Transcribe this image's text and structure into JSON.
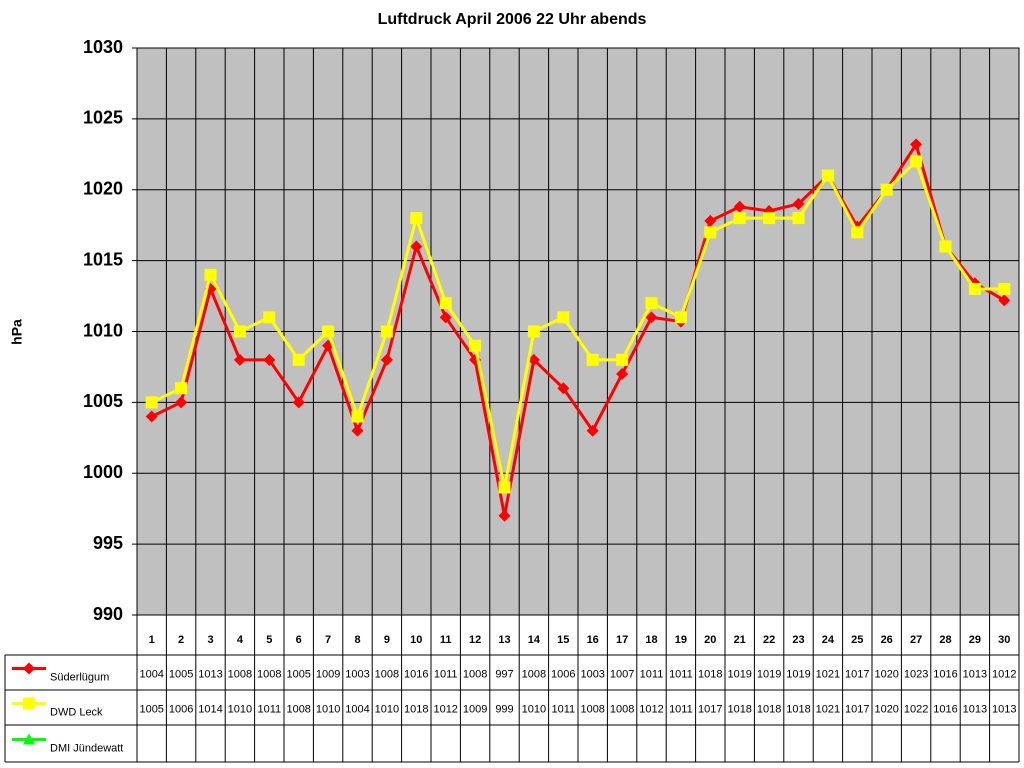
{
  "chart_data": {
    "type": "line",
    "title": "Luftdruck April 2006 22 Uhr abends",
    "y_label": "hPa",
    "categories": [
      "1",
      "2",
      "3",
      "4",
      "5",
      "6",
      "7",
      "8",
      "9",
      "10",
      "11",
      "12",
      "13",
      "14",
      "15",
      "16",
      "17",
      "18",
      "19",
      "20",
      "21",
      "22",
      "23",
      "24",
      "25",
      "26",
      "27",
      "28",
      "29",
      "30"
    ],
    "series": [
      {
        "name": "Süderlügum",
        "color": "#ff0000",
        "marker": "diamond",
        "values": [
          1004,
          1005,
          1013,
          1008,
          1008,
          1005,
          1009,
          1003,
          1008,
          1016,
          1011,
          1008,
          997,
          1008,
          1006,
          1003,
          1007,
          1011,
          1010.7,
          1017.8,
          1018.8,
          1018.5,
          1019,
          1021,
          1017.4,
          1020,
          1023.2,
          1016,
          1013.4,
          1012.2
        ],
        "value_labels": [
          "1004",
          "1005",
          "1013",
          "1008",
          "1008",
          "1005",
          "1009",
          "1003",
          "1008",
          "1016",
          "1011",
          "1008",
          "997",
          "1008",
          "1006",
          "1003",
          "1007",
          "1011",
          "1011",
          "1018",
          "1019",
          "1019",
          "1019",
          "1021",
          "1017",
          "1020",
          "1023",
          "1016",
          "1013",
          "1012"
        ]
      },
      {
        "name": "DWD Leck",
        "color": "#ffff00",
        "marker": "square",
        "values": [
          1005,
          1006,
          1014,
          1010,
          1011,
          1008,
          1010,
          1004,
          1010,
          1018,
          1012,
          1009,
          999,
          1010,
          1011,
          1008,
          1008,
          1012,
          1011,
          1017,
          1018,
          1018,
          1018,
          1021,
          1017,
          1020,
          1022,
          1016,
          1013,
          1013
        ]
      },
      {
        "name": "DMI Jündewatt",
        "color": "#00ff00",
        "marker": "triangle",
        "values": [
          null,
          null,
          null,
          null,
          null,
          null,
          null,
          null,
          null,
          null,
          null,
          null,
          null,
          null,
          null,
          null,
          null,
          null,
          null,
          null,
          null,
          null,
          null,
          null,
          null,
          null,
          null,
          null,
          null,
          null
        ]
      }
    ],
    "ylim": [
      990,
      1030
    ],
    "yticks": [
      990,
      995,
      1000,
      1005,
      1010,
      1015,
      1020,
      1025,
      1030
    ],
    "grid": true
  }
}
